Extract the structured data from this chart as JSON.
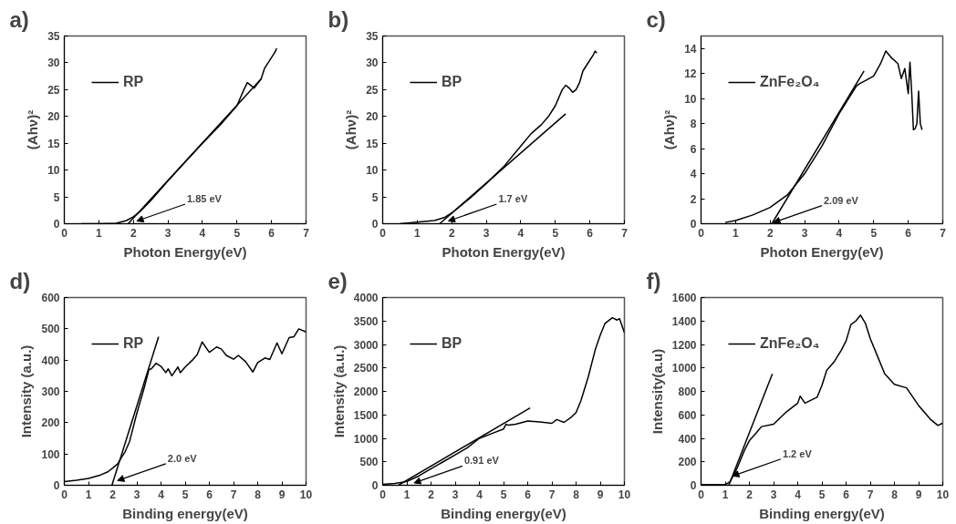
{
  "chart_data": [
    {
      "type": "line",
      "title": "a)",
      "xlabel": "Photon Energy(eV)",
      "ylabel": "(Ahν)²",
      "xlim": [
        0,
        7
      ],
      "ylim": [
        0,
        35
      ],
      "xticks": [
        0,
        1,
        2,
        3,
        4,
        5,
        6,
        7
      ],
      "yticks": [
        0,
        5,
        10,
        15,
        20,
        25,
        30,
        35
      ],
      "legend": "top left",
      "grid": false,
      "series": [
        {
          "name": "RP",
          "color": "#000000",
          "x": [
            0.5,
            1,
            1.5,
            1.8,
            2.0,
            2.2,
            2.5,
            3,
            3.5,
            4,
            4.5,
            5,
            5.2,
            5.3,
            5.4,
            5.5,
            5.7,
            5.8,
            6,
            6.1,
            6.15
          ],
          "values": [
            0,
            0,
            0.1,
            0.6,
            1.3,
            2.3,
            4.3,
            8,
            11.5,
            15,
            18.3,
            22,
            25,
            26.3,
            25.8,
            25.3,
            27,
            29,
            31,
            32,
            32.7
          ]
        },
        {
          "type": "line",
          "color": "#000000",
          "x": [
            1.85,
            5.7
          ],
          "values": [
            0,
            27
          ]
        }
      ],
      "annotations": [
        {
          "text": "1.85 eV",
          "x": 2.1,
          "y": 0.5
        }
      ]
    },
    {
      "type": "line",
      "title": "b)",
      "xlabel": "Photon Energy(eV)",
      "ylabel": "(Ahν)²",
      "xlim": [
        0,
        7
      ],
      "ylim": [
        0,
        35
      ],
      "xticks": [
        0,
        1,
        2,
        3,
        4,
        5,
        6,
        7
      ],
      "yticks": [
        0,
        5,
        10,
        15,
        20,
        25,
        30,
        35
      ],
      "legend": "top left",
      "grid": false,
      "series": [
        {
          "name": "BP",
          "color": "#000000",
          "x": [
            0.5,
            1,
            1.5,
            1.8,
            2,
            2.5,
            3,
            3.5,
            4,
            4.3,
            4.6,
            4.8,
            5,
            5.2,
            5.3,
            5.4,
            5.5,
            5.6,
            5.7,
            5.8,
            6,
            6.1,
            6.15,
            6.2
          ],
          "values": [
            0,
            0.3,
            0.6,
            1.2,
            2,
            4.6,
            7.5,
            10.6,
            14.5,
            16.8,
            18.5,
            20,
            22,
            25,
            25.8,
            25.3,
            24.5,
            25,
            26.3,
            28.5,
            30.5,
            31.5,
            32.2,
            31.8
          ]
        },
        {
          "type": "line",
          "color": "#000000",
          "x": [
            1.65,
            5.3
          ],
          "values": [
            0,
            20.5
          ]
        }
      ],
      "annotations": [
        {
          "text": "1.7 eV",
          "x": 1.9,
          "y": 0.5
        }
      ]
    },
    {
      "type": "line",
      "title": "c)",
      "xlabel": "Photon Energy(eV)",
      "ylabel": "(Ahν)²",
      "xlim": [
        0,
        7
      ],
      "ylim": [
        0,
        15
      ],
      "xticks": [
        0,
        1,
        2,
        3,
        4,
        5,
        6,
        7
      ],
      "yticks": [
        0,
        2,
        4,
        6,
        8,
        10,
        12,
        14
      ],
      "legend": "top left",
      "grid": false,
      "series": [
        {
          "name": "ZnFe₂O₄",
          "color": "#000000",
          "x": [
            0.7,
            1,
            1.5,
            2,
            2.5,
            3,
            3.5,
            4,
            4.5,
            4.6,
            4.8,
            5,
            5.2,
            5.35,
            5.5,
            5.7,
            5.8,
            5.9,
            6.0,
            6.05,
            6.1,
            6.15,
            6.2,
            6.25,
            6.3,
            6.35,
            6.4
          ],
          "values": [
            0.1,
            0.25,
            0.7,
            1.3,
            2.3,
            4,
            6.2,
            8.8,
            11,
            11.2,
            11.5,
            11.8,
            12.8,
            13.8,
            13.3,
            12.8,
            11.6,
            12.4,
            10.4,
            12.9,
            10.5,
            7.5,
            7.6,
            8,
            10.6,
            8,
            7.5
          ]
        },
        {
          "type": "line",
          "color": "#000000",
          "x": [
            2.05,
            4.72
          ],
          "values": [
            0,
            12.2
          ]
        }
      ],
      "annotations": [
        {
          "text": "2.09 eV",
          "x": 2.1,
          "y": 0.1
        }
      ]
    },
    {
      "type": "line",
      "title": "d)",
      "xlabel": "Binding energy(eV)",
      "ylabel": "Intensity (a.u.)",
      "xlim": [
        0,
        10
      ],
      "ylim": [
        0,
        600
      ],
      "xticks": [
        0,
        1,
        2,
        3,
        4,
        5,
        6,
        7,
        8,
        9,
        10
      ],
      "yticks": [
        0,
        100,
        200,
        300,
        400,
        500,
        600
      ],
      "legend": "top left",
      "grid": false,
      "series": [
        {
          "name": "RP",
          "color": "#000000",
          "x": [
            0,
            0.5,
            1,
            1.5,
            1.8,
            2,
            2.2,
            2.5,
            2.7,
            3,
            3.3,
            3.5,
            3.6,
            3.8,
            4,
            4.2,
            4.3,
            4.45,
            4.7,
            4.8,
            5,
            5.3,
            5.5,
            5.7,
            6,
            6.3,
            6.5,
            6.7,
            7,
            7.2,
            7.5,
            7.8,
            8,
            8.3,
            8.5,
            8.8,
            9,
            9.3,
            9.5,
            9.7,
            10
          ],
          "values": [
            12,
            16,
            22,
            33,
            43,
            55,
            68,
            105,
            140,
            230,
            310,
            370,
            372,
            390,
            380,
            360,
            372,
            350,
            378,
            360,
            378,
            400,
            418,
            458,
            425,
            442,
            435,
            415,
            403,
            415,
            395,
            362,
            392,
            407,
            402,
            455,
            420,
            472,
            475,
            500,
            490
          ]
        },
        {
          "type": "line",
          "color": "#000000",
          "x": [
            1.97,
            3.9
          ],
          "values": [
            0,
            475
          ]
        }
      ],
      "annotations": [
        {
          "text": "2.0 eV",
          "x": 2.2,
          "y": 15
        }
      ]
    },
    {
      "type": "line",
      "title": "e)",
      "xlabel": "Binding energy(eV)",
      "ylabel": "Intensity (a.u.)",
      "xlim": [
        0,
        10
      ],
      "ylim": [
        0,
        4000
      ],
      "xticks": [
        0,
        1,
        2,
        3,
        4,
        5,
        6,
        7,
        8,
        9,
        10
      ],
      "yticks": [
        0,
        500,
        1000,
        1500,
        2000,
        2500,
        3000,
        3500,
        4000
      ],
      "legend": "top left",
      "grid": false,
      "series": [
        {
          "name": "BP",
          "color": "#000000",
          "x": [
            0,
            0.5,
            1,
            1.5,
            2,
            2.5,
            3,
            3.5,
            4,
            4.5,
            5,
            5.1,
            5.2,
            5.5,
            6,
            6.5,
            7,
            7.2,
            7.5,
            7.8,
            8,
            8.2,
            8.5,
            8.8,
            9,
            9.2,
            9.5,
            9.7,
            9.8,
            10
          ],
          "values": [
            20,
            40,
            80,
            200,
            350,
            500,
            650,
            800,
            1000,
            1100,
            1200,
            1300,
            1280,
            1300,
            1370,
            1350,
            1320,
            1400,
            1340,
            1450,
            1550,
            1800,
            2300,
            2900,
            3200,
            3450,
            3570,
            3520,
            3550,
            3250
          ]
        },
        {
          "type": "line",
          "color": "#000000",
          "x": [
            0.65,
            6.1
          ],
          "values": [
            0,
            1650
          ]
        }
      ],
      "annotations": [
        {
          "text": "0.91 eV",
          "x": 1.3,
          "y": 50
        }
      ]
    },
    {
      "type": "line",
      "title": "f)",
      "xlabel": "Binding energy(eV)",
      "ylabel": "Intensity(a.u)",
      "xlim": [
        0,
        10
      ],
      "ylim": [
        0,
        1600
      ],
      "xticks": [
        0,
        1,
        2,
        3,
        4,
        5,
        6,
        7,
        8,
        9,
        10
      ],
      "yticks": [
        0,
        200,
        400,
        600,
        800,
        1000,
        1200,
        1400,
        1600
      ],
      "legend": "top left",
      "grid": false,
      "series": [
        {
          "name": "ZnFe₂O₄",
          "color": "#000000",
          "x": [
            0,
            0.5,
            1,
            1.2,
            1.5,
            1.8,
            2,
            2.3,
            2.5,
            3,
            3.5,
            4,
            4.1,
            4.3,
            4.8,
            5,
            5.2,
            5.5,
            5.8,
            6,
            6.2,
            6.4,
            6.6,
            6.8,
            7,
            7.3,
            7.6,
            8,
            8.5,
            9,
            9.5,
            9.8,
            10
          ],
          "values": [
            5,
            5,
            5,
            30,
            150,
            300,
            380,
            450,
            500,
            520,
            620,
            700,
            760,
            700,
            750,
            850,
            980,
            1050,
            1150,
            1230,
            1370,
            1400,
            1450,
            1380,
            1250,
            1100,
            950,
            860,
            830,
            680,
            560,
            510,
            530
          ]
        },
        {
          "type": "line",
          "color": "#000000",
          "x": [
            1.15,
            2.95
          ],
          "values": [
            0,
            950
          ]
        }
      ],
      "annotations": [
        {
          "text": "1.2 eV",
          "x": 1.3,
          "y": 79
        }
      ]
    }
  ]
}
